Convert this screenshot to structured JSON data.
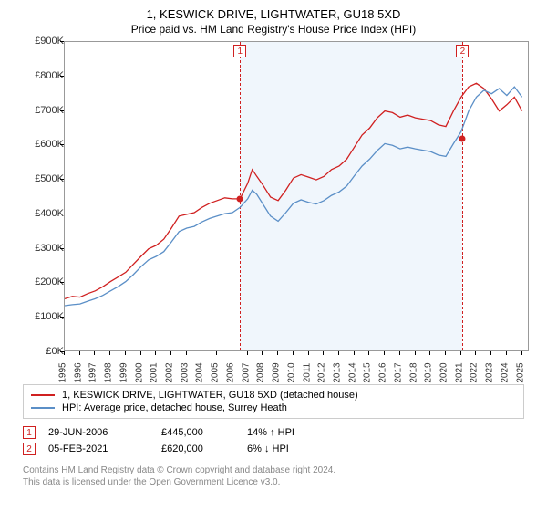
{
  "title": "1, KESWICK DRIVE, LIGHTWATER, GU18 5XD",
  "subtitle": "Price paid vs. HM Land Registry's House Price Index (HPI)",
  "chart": {
    "type": "line",
    "background_color": "#ffffff",
    "shaded_band_color": "#f0f6fc",
    "shaded_start_year": 2006.5,
    "shaded_end_year": 2021.1,
    "yaxis": {
      "min": 0,
      "max": 900000,
      "tick_step": 100000,
      "prefix": "£",
      "suffix": "K",
      "label_fontsize": 11
    },
    "xaxis": {
      "min": 1995,
      "max": 2025.5,
      "ticks": [
        1995,
        1996,
        1997,
        1998,
        1999,
        2000,
        2001,
        2002,
        2003,
        2004,
        2005,
        2006,
        2007,
        2008,
        2009,
        2010,
        2011,
        2012,
        2013,
        2014,
        2015,
        2016,
        2017,
        2018,
        2019,
        2020,
        2021,
        2022,
        2023,
        2024,
        2025
      ],
      "label_fontsize": 10
    },
    "vlines": [
      {
        "x": 2006.5,
        "color": "#d02020"
      },
      {
        "x": 2021.1,
        "color": "#d02020"
      }
    ],
    "markers": [
      {
        "x": 2006.5,
        "y": 445000,
        "color": "#d02020",
        "label": "1"
      },
      {
        "x": 2021.1,
        "y": 620000,
        "color": "#d02020",
        "label": "2"
      }
    ],
    "series": [
      {
        "name": "property",
        "color": "#d02020",
        "line_width": 1.3,
        "data": [
          [
            1995,
            155000
          ],
          [
            1995.5,
            162000
          ],
          [
            1996,
            160000
          ],
          [
            1996.5,
            170000
          ],
          [
            1997,
            178000
          ],
          [
            1997.5,
            190000
          ],
          [
            1998,
            205000
          ],
          [
            1998.5,
            218000
          ],
          [
            1999,
            232000
          ],
          [
            1999.5,
            255000
          ],
          [
            2000,
            278000
          ],
          [
            2000.5,
            300000
          ],
          [
            2001,
            310000
          ],
          [
            2001.5,
            328000
          ],
          [
            2002,
            360000
          ],
          [
            2002.5,
            395000
          ],
          [
            2003,
            400000
          ],
          [
            2003.5,
            405000
          ],
          [
            2004,
            420000
          ],
          [
            2004.5,
            432000
          ],
          [
            2005,
            440000
          ],
          [
            2005.5,
            448000
          ],
          [
            2006,
            445000
          ],
          [
            2006.5,
            445000
          ],
          [
            2007,
            490000
          ],
          [
            2007.3,
            530000
          ],
          [
            2007.6,
            510000
          ],
          [
            2008,
            485000
          ],
          [
            2008.5,
            450000
          ],
          [
            2009,
            440000
          ],
          [
            2009.5,
            470000
          ],
          [
            2010,
            505000
          ],
          [
            2010.5,
            515000
          ],
          [
            2011,
            508000
          ],
          [
            2011.5,
            500000
          ],
          [
            2012,
            510000
          ],
          [
            2012.5,
            530000
          ],
          [
            2013,
            540000
          ],
          [
            2013.5,
            560000
          ],
          [
            2014,
            595000
          ],
          [
            2014.5,
            630000
          ],
          [
            2015,
            650000
          ],
          [
            2015.5,
            680000
          ],
          [
            2016,
            700000
          ],
          [
            2016.5,
            695000
          ],
          [
            2017,
            682000
          ],
          [
            2017.5,
            688000
          ],
          [
            2018,
            680000
          ],
          [
            2018.5,
            676000
          ],
          [
            2019,
            672000
          ],
          [
            2019.5,
            660000
          ],
          [
            2020,
            655000
          ],
          [
            2020.5,
            700000
          ],
          [
            2021,
            740000
          ],
          [
            2021.5,
            770000
          ],
          [
            2022,
            780000
          ],
          [
            2022.5,
            765000
          ],
          [
            2023,
            735000
          ],
          [
            2023.5,
            700000
          ],
          [
            2024,
            718000
          ],
          [
            2024.5,
            740000
          ],
          [
            2025,
            700000
          ]
        ]
      },
      {
        "name": "hpi",
        "color": "#5b8fc7",
        "line_width": 1.3,
        "data": [
          [
            1995,
            135000
          ],
          [
            1995.5,
            138000
          ],
          [
            1996,
            140000
          ],
          [
            1996.5,
            148000
          ],
          [
            1997,
            155000
          ],
          [
            1997.5,
            165000
          ],
          [
            1998,
            178000
          ],
          [
            1998.5,
            190000
          ],
          [
            1999,
            205000
          ],
          [
            1999.5,
            225000
          ],
          [
            2000,
            248000
          ],
          [
            2000.5,
            268000
          ],
          [
            2001,
            278000
          ],
          [
            2001.5,
            292000
          ],
          [
            2002,
            320000
          ],
          [
            2002.5,
            350000
          ],
          [
            2003,
            360000
          ],
          [
            2003.5,
            365000
          ],
          [
            2004,
            378000
          ],
          [
            2004.5,
            388000
          ],
          [
            2005,
            395000
          ],
          [
            2005.5,
            402000
          ],
          [
            2006,
            405000
          ],
          [
            2006.5,
            420000
          ],
          [
            2007,
            445000
          ],
          [
            2007.3,
            470000
          ],
          [
            2007.6,
            458000
          ],
          [
            2008,
            430000
          ],
          [
            2008.5,
            395000
          ],
          [
            2009,
            380000
          ],
          [
            2009.5,
            405000
          ],
          [
            2010,
            432000
          ],
          [
            2010.5,
            442000
          ],
          [
            2011,
            435000
          ],
          [
            2011.5,
            430000
          ],
          [
            2012,
            440000
          ],
          [
            2012.5,
            455000
          ],
          [
            2013,
            465000
          ],
          [
            2013.5,
            482000
          ],
          [
            2014,
            512000
          ],
          [
            2014.5,
            540000
          ],
          [
            2015,
            560000
          ],
          [
            2015.5,
            585000
          ],
          [
            2016,
            605000
          ],
          [
            2016.5,
            600000
          ],
          [
            2017,
            590000
          ],
          [
            2017.5,
            595000
          ],
          [
            2018,
            590000
          ],
          [
            2018.5,
            586000
          ],
          [
            2019,
            582000
          ],
          [
            2019.5,
            572000
          ],
          [
            2020,
            568000
          ],
          [
            2020.5,
            605000
          ],
          [
            2021,
            640000
          ],
          [
            2021.5,
            700000
          ],
          [
            2022,
            740000
          ],
          [
            2022.5,
            760000
          ],
          [
            2023,
            750000
          ],
          [
            2023.5,
            765000
          ],
          [
            2024,
            745000
          ],
          [
            2024.5,
            770000
          ],
          [
            2025,
            740000
          ]
        ]
      }
    ]
  },
  "legend": {
    "items": [
      {
        "color": "#d02020",
        "label": "1, KESWICK DRIVE, LIGHTWATER, GU18 5XD (detached house)"
      },
      {
        "color": "#5b8fc7",
        "label": "HPI: Average price, detached house, Surrey Heath"
      }
    ]
  },
  "sales": [
    {
      "num": "1",
      "date": "29-JUN-2006",
      "price": "£445,000",
      "diff": "14% ↑ HPI"
    },
    {
      "num": "2",
      "date": "05-FEB-2021",
      "price": "£620,000",
      "diff": "6% ↓ HPI"
    }
  ],
  "footer": {
    "line1": "Contains HM Land Registry data © Crown copyright and database right 2024.",
    "line2": "This data is licensed under the Open Government Licence v3.0."
  }
}
